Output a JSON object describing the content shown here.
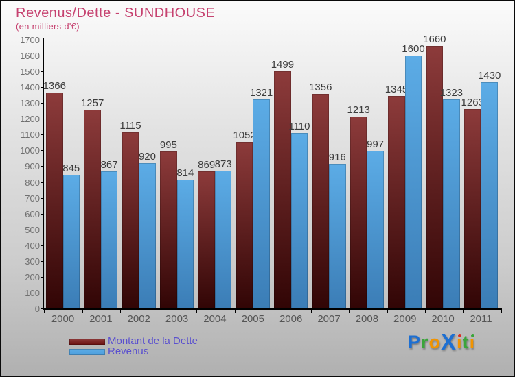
{
  "title": "Revenus/Dette - SUNDHOUSE",
  "subtitle": "(en milliers d'€)",
  "chart_data": {
    "type": "bar",
    "title": "Revenus/Dette - SUNDHOUSE",
    "subtitle": "(en milliers d'€)",
    "categories": [
      "2000",
      "2001",
      "2002",
      "2003",
      "2004",
      "2005",
      "2006",
      "2007",
      "2008",
      "2009",
      "2010",
      "2011"
    ],
    "series": [
      {
        "name": "Montant de la Dette",
        "values": [
          1366,
          1257,
          1115,
          995,
          869,
          1052,
          1499,
          1356,
          1213,
          1345,
          1660,
          1263
        ],
        "color_top": "#8d3b3b",
        "color_bottom": "#310505",
        "legend_color": "#6b1111"
      },
      {
        "name": "Revenus",
        "values": [
          845,
          867,
          920,
          814,
          873,
          1321,
          1110,
          916,
          997,
          1600,
          1323,
          1430
        ],
        "color_top": "#5cace6",
        "color_bottom": "#3b7db6",
        "legend_color": "#4d9edd"
      }
    ],
    "ylim": [
      0,
      1700
    ],
    "ytick_step": 100,
    "grid": false,
    "legend_position": "bottom-left",
    "note": "value labels shown above each bar; taller neighbor bars partially occlude some labels (2005, 2009, 2011 dette labels)"
  },
  "colors": {
    "title": "#c64270",
    "axis": "#000000",
    "tick_label": "#707070",
    "year_label": "#555555",
    "value_label": "#3c3c3c",
    "legend_text": "#5a50cf",
    "background_top": "#fbfbfb",
    "background_bottom": "#b0b0b0"
  },
  "logo": {
    "text": "Proxiti",
    "letters": [
      {
        "ch": "P",
        "color": "#1d6fd2"
      },
      {
        "ch": "r",
        "color": "#3aa53a"
      },
      {
        "ch": "o",
        "color": "#f29400"
      },
      {
        "ch": "X",
        "color": "#1d6fd2",
        "big": true
      },
      {
        "ch": "ı",
        "color": "#f29400",
        "dot": "#d93025"
      },
      {
        "ch": "t",
        "color": "#3aa53a"
      },
      {
        "ch": "ı",
        "color": "#f29400",
        "dot": "#3aa53a"
      }
    ]
  }
}
